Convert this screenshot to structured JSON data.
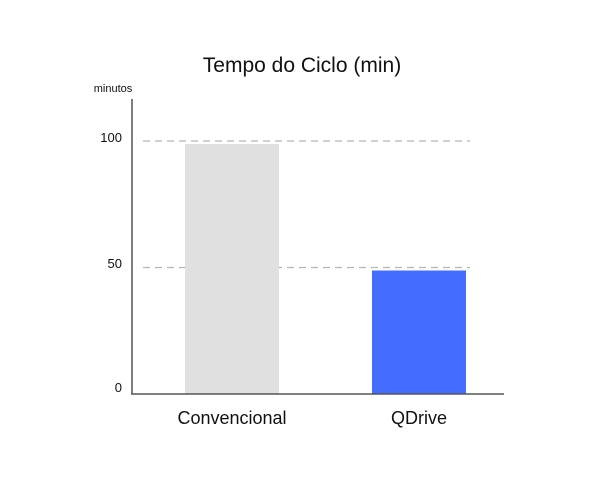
{
  "chart_data": {
    "type": "bar",
    "title": "Tempo do Ciclo (min)",
    "ylabel": "minutos",
    "xlabel": "",
    "categories": [
      "Convencional",
      "QDrive"
    ],
    "values": [
      100,
      50
    ],
    "ylim": [
      0,
      100
    ],
    "yticks": [
      "0",
      "50",
      "100"
    ],
    "bar_colors": [
      "#e0e0e0",
      "#446cff"
    ],
    "reference_lines": [
      100,
      50
    ],
    "grid": false,
    "legend": "none"
  }
}
